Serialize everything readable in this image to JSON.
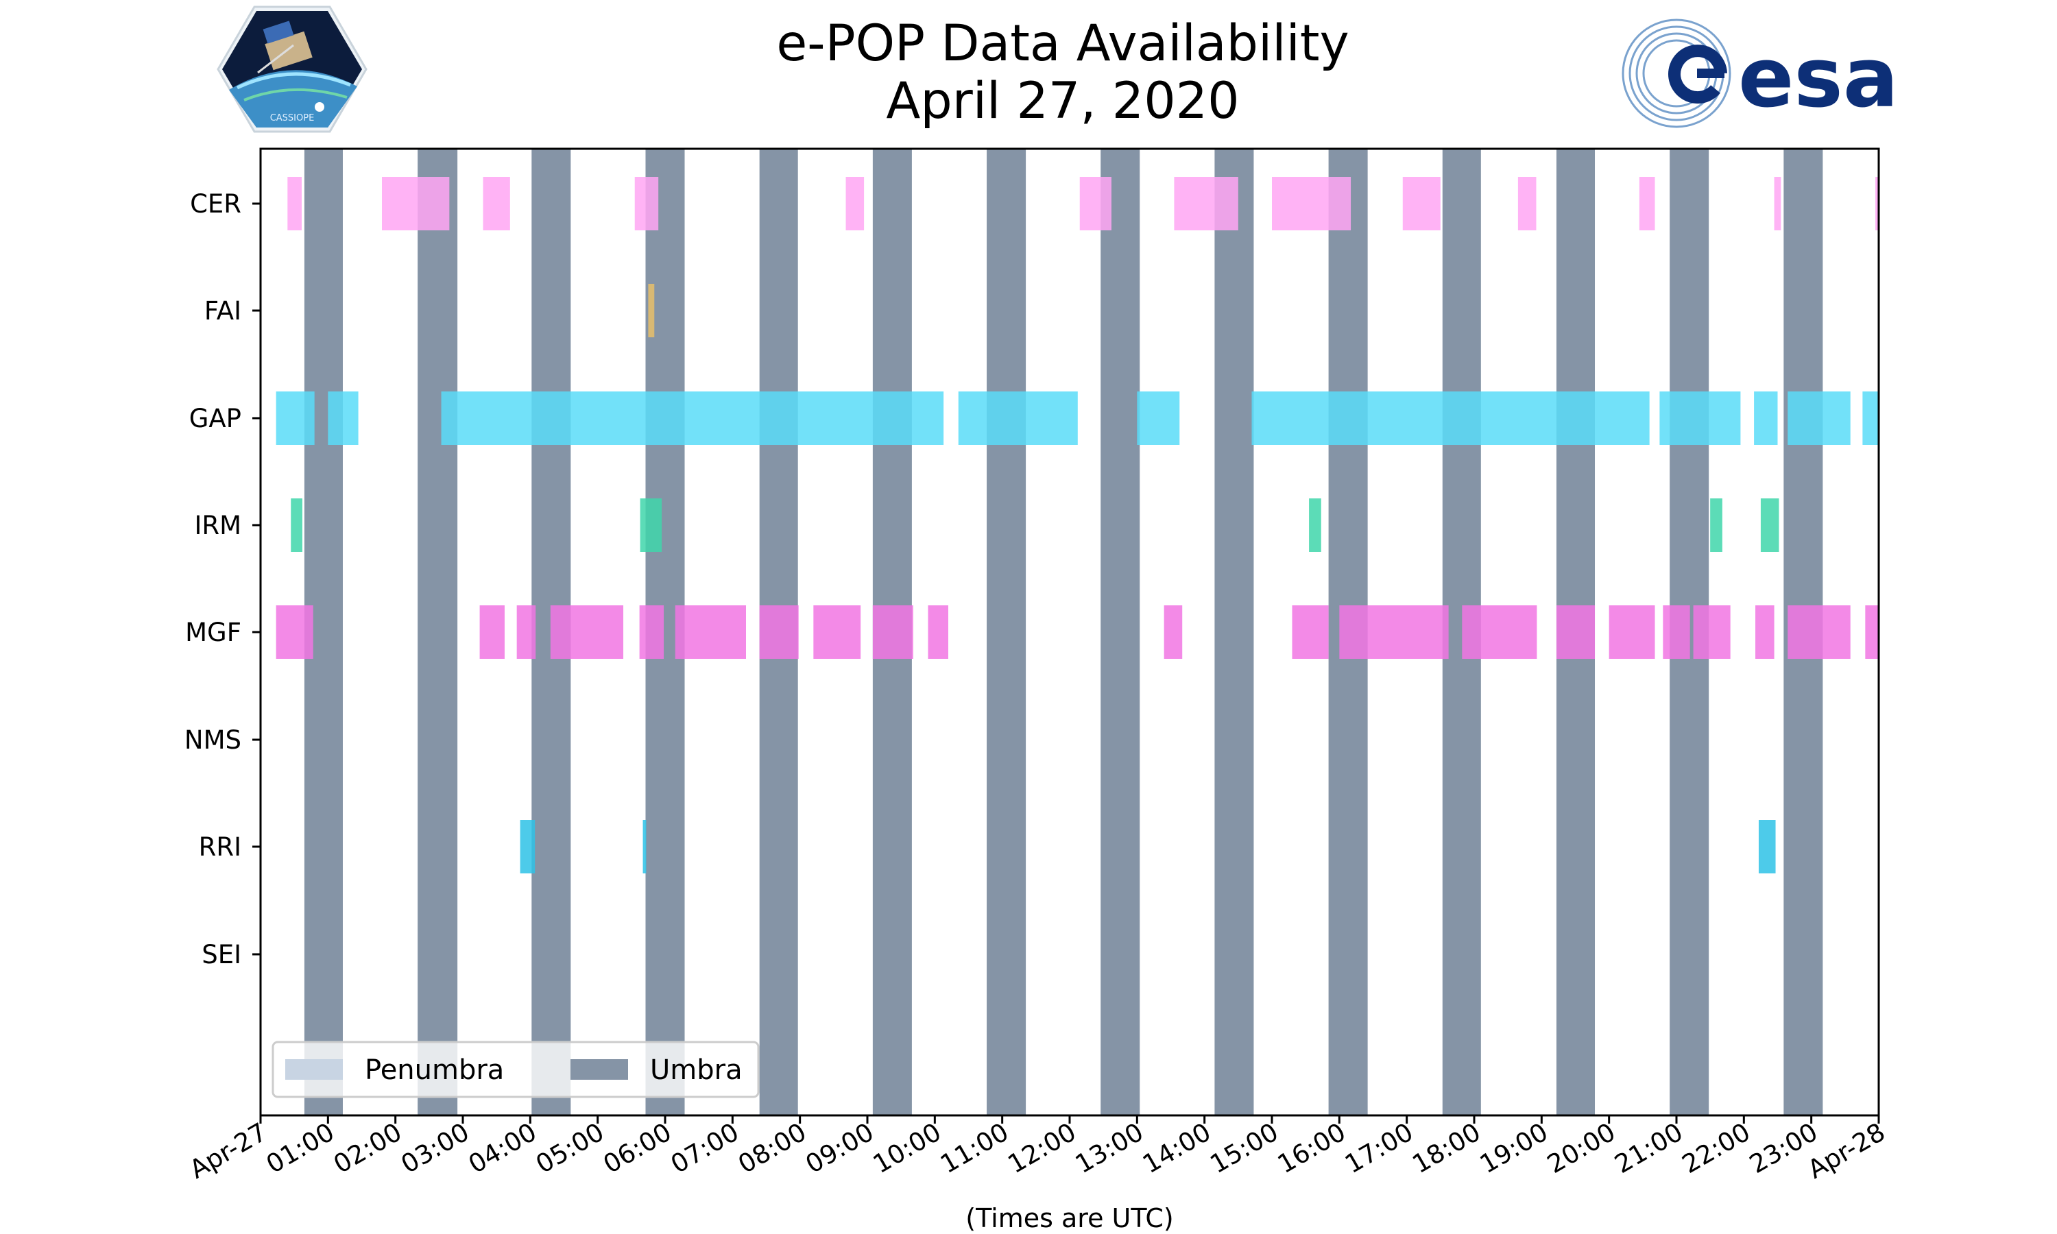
{
  "title": {
    "line1": "e-POP Data Availability",
    "line2": "April 27, 2020"
  },
  "logos": {
    "left_text": "CASSIOPE",
    "right_text": "esa"
  },
  "colors": {
    "umbra": "#8594a6",
    "penumbra": "#c8d4e3",
    "CER": "#ffa6f3",
    "FAI": "#e8c06a",
    "GAP": "#59dcf8",
    "IRM": "#3fd6aa",
    "MGF": "#f175e3",
    "NMS": "#a0a0a0",
    "RRI": "#2ec2e6",
    "SEI": "#a0a0a0"
  },
  "chart_data": {
    "type": "bar",
    "orientation": "horizontal-timeline",
    "xlabel": "(Times are UTC)",
    "xlim": [
      0,
      24
    ],
    "xticks": [
      "Apr-27",
      "01:00",
      "02:00",
      "03:00",
      "04:00",
      "05:00",
      "06:00",
      "07:00",
      "08:00",
      "09:00",
      "10:00",
      "11:00",
      "12:00",
      "13:00",
      "14:00",
      "15:00",
      "16:00",
      "17:00",
      "18:00",
      "19:00",
      "20:00",
      "21:00",
      "22:00",
      "23:00",
      "Apr-28"
    ],
    "instruments": [
      "CER",
      "FAI",
      "GAP",
      "IRM",
      "MGF",
      "NMS",
      "RRI",
      "SEI"
    ],
    "umbra": [
      [
        0.65,
        1.22
      ],
      [
        2.33,
        2.92
      ],
      [
        4.02,
        4.6
      ],
      [
        5.71,
        6.29
      ],
      [
        7.4,
        7.97
      ],
      [
        9.08,
        9.66
      ],
      [
        10.77,
        11.35
      ],
      [
        12.46,
        13.04
      ],
      [
        14.15,
        14.73
      ],
      [
        15.84,
        16.42
      ],
      [
        17.53,
        18.1
      ],
      [
        19.22,
        19.79
      ],
      [
        20.9,
        21.48
      ],
      [
        22.59,
        23.17
      ]
    ],
    "penumbra": [],
    "availability": {
      "CER": [
        [
          0.4,
          0.61
        ],
        [
          1.8,
          2.8
        ],
        [
          3.3,
          3.7
        ],
        [
          5.55,
          5.9
        ],
        [
          8.68,
          8.95
        ],
        [
          12.15,
          12.62
        ],
        [
          13.55,
          14.5
        ],
        [
          15.0,
          16.17
        ],
        [
          16.94,
          17.5
        ],
        [
          18.65,
          18.92
        ],
        [
          20.45,
          20.68
        ],
        [
          22.45,
          22.55
        ],
        [
          23.95,
          24.0
        ]
      ],
      "FAI": [
        [
          5.75,
          5.84
        ]
      ],
      "GAP": [
        [
          0.23,
          0.8
        ],
        [
          1.0,
          1.45
        ],
        [
          2.68,
          10.13
        ],
        [
          10.35,
          12.12
        ],
        [
          13.0,
          13.63
        ],
        [
          14.7,
          20.6
        ],
        [
          20.75,
          21.95
        ],
        [
          22.15,
          22.5
        ],
        [
          22.65,
          23.58
        ],
        [
          23.76,
          24.0
        ]
      ],
      "IRM": [
        [
          0.45,
          0.62
        ],
        [
          5.63,
          5.95
        ],
        [
          15.55,
          15.73
        ],
        [
          21.5,
          21.68
        ],
        [
          22.25,
          22.52
        ]
      ],
      "MGF": [
        [
          0.23,
          0.78
        ],
        [
          3.25,
          3.62
        ],
        [
          3.8,
          4.08
        ],
        [
          4.3,
          5.38
        ],
        [
          5.62,
          5.98
        ],
        [
          6.15,
          7.2
        ],
        [
          7.4,
          7.98
        ],
        [
          8.2,
          8.9
        ],
        [
          9.08,
          9.68
        ],
        [
          9.9,
          10.2
        ],
        [
          13.4,
          13.67
        ],
        [
          15.3,
          15.84
        ],
        [
          16.0,
          17.62
        ],
        [
          17.82,
          18.93
        ],
        [
          19.22,
          19.79
        ],
        [
          20.0,
          20.68
        ],
        [
          20.8,
          21.2
        ],
        [
          21.25,
          21.8
        ],
        [
          22.17,
          22.45
        ],
        [
          22.65,
          23.58
        ],
        [
          23.8,
          24.0
        ]
      ],
      "NMS": [],
      "RRI": [
        [
          3.85,
          4.07
        ],
        [
          5.67,
          5.72
        ],
        [
          22.22,
          22.47
        ]
      ],
      "SEI": []
    },
    "legend": {
      "location": "lower-left",
      "entries": [
        "Penumbra",
        "Umbra"
      ]
    }
  }
}
